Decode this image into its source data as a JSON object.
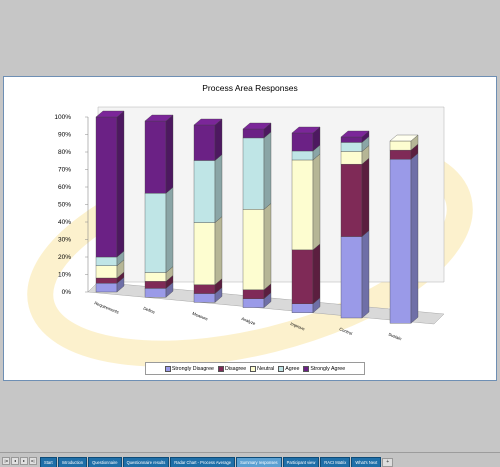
{
  "chart_data": {
    "type": "bar",
    "stacked": true,
    "three_d": true,
    "percent": true,
    "title": "Process Area Responses",
    "categories": [
      "Requirements",
      "Define",
      "Measure",
      "Analyze",
      "Improve",
      "Control",
      "Sustain"
    ],
    "ylim": [
      0,
      100
    ],
    "yticks": [
      "0%",
      "10%",
      "20%",
      "30%",
      "40%",
      "50%",
      "60%",
      "70%",
      "80%",
      "90%",
      "100%"
    ],
    "series": [
      {
        "name": "Strongly Disagree",
        "color": "#9a9ae8",
        "values": [
          5,
          5,
          5,
          5,
          5,
          45,
          90
        ]
      },
      {
        "name": "Disagree",
        "color": "#7f2a57",
        "values": [
          3,
          4,
          5,
          5,
          30,
          40,
          5
        ]
      },
      {
        "name": "Neutral",
        "color": "#fdfdd0",
        "values": [
          7,
          5,
          35,
          45,
          50,
          7,
          5
        ]
      },
      {
        "name": "Agree",
        "color": "#bfe5e6",
        "values": [
          5,
          45,
          35,
          40,
          5,
          5,
          0
        ]
      },
      {
        "name": "Strongly Agree",
        "color": "#6b2185",
        "values": [
          80,
          41,
          20,
          5,
          10,
          3,
          0
        ]
      }
    ],
    "legend_position": "bottom",
    "grid": false
  },
  "legend": [
    {
      "label": "Strongly Disagree",
      "color": "#9a9ae8"
    },
    {
      "label": "Disagree",
      "color": "#7f2a57"
    },
    {
      "label": "Neutral",
      "color": "#fdfdd0"
    },
    {
      "label": "Agree",
      "color": "#bfe5e6"
    },
    {
      "label": "Strongly Agree",
      "color": "#6b2185"
    }
  ],
  "sheet_tabs": [
    {
      "label": "Start",
      "active": false
    },
    {
      "label": "Introduction",
      "active": false
    },
    {
      "label": "Questionnaire",
      "active": false
    },
    {
      "label": "Questionnaire results",
      "active": false
    },
    {
      "label": "Radar Chart - Process Average",
      "active": false
    },
    {
      "label": "Summary responses",
      "active": true
    },
    {
      "label": "Participant view",
      "active": false
    },
    {
      "label": "RACI Matrix",
      "active": false
    },
    {
      "label": "What's Next",
      "active": false
    }
  ],
  "nav_icons": [
    "first-sheet-icon",
    "prev-sheet-icon",
    "next-sheet-icon",
    "last-sheet-icon"
  ]
}
